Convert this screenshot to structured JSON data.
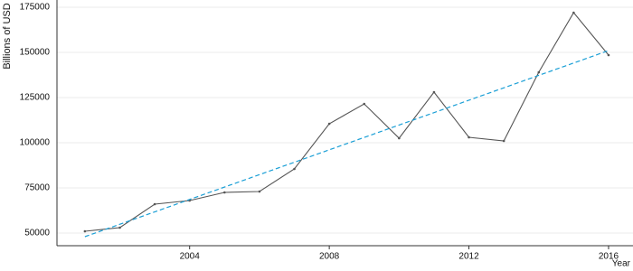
{
  "chart_data": {
    "type": "line",
    "y_label": "Billions of USD",
    "x_label": "Year",
    "series": [
      {
        "color": "#555555",
        "dash": false,
        "markers": true,
        "x": [
          2001,
          2002,
          2003,
          2004,
          2005,
          2006,
          2007,
          2008,
          2009,
          2010,
          2011,
          2012,
          2013,
          2014,
          2015,
          2016
        ],
        "values": [
          51000,
          53000,
          66000,
          68000,
          72500,
          73000,
          85500,
          110500,
          121500,
          102500,
          128000,
          103000,
          101000,
          139000,
          172000,
          148500
        ]
      },
      {
        "color": "#1a9fd6",
        "dash": true,
        "markers": false,
        "x": [
          2001,
          2016
        ],
        "values": [
          48000,
          151000
        ]
      }
    ],
    "xlim": [
      2000.2,
      2016.7
    ],
    "xticks": [
      2004,
      2008,
      2012,
      2016
    ],
    "ylim": [
      43000,
      179000
    ],
    "yticks": [
      50000,
      75000,
      100000,
      125000,
      150000,
      175000
    ],
    "grid": true
  }
}
